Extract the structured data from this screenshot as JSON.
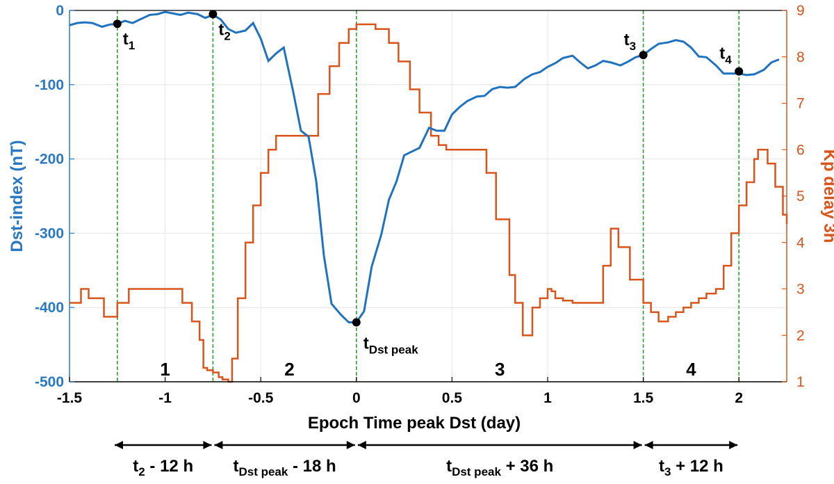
{
  "chart_data": {
    "type": "line",
    "xlabel": "Epoch Time peak Dst (day)",
    "ylabel_left": "Dst-index (nT)",
    "ylabel_right": "Kp delay 3h",
    "xlim": [
      -1.5,
      2.25
    ],
    "ylim_left": [
      -500,
      0
    ],
    "ylim_right": [
      1,
      9
    ],
    "x_ticks": [
      -1.5,
      -1,
      -0.5,
      0,
      0.5,
      1,
      1.5,
      2
    ],
    "x_tick_labels": [
      "-1.5",
      "-1",
      "-0.5",
      "0",
      "0.5",
      "1",
      "1.5",
      "2"
    ],
    "y_left_ticks": [
      0,
      -100,
      -200,
      -300,
      -400,
      -500
    ],
    "y_left_tick_labels": [
      "0",
      "-100",
      "-200",
      "-300",
      "-400",
      "-500"
    ],
    "y_right_ticks": [
      1,
      2,
      3,
      4,
      5,
      6,
      7,
      8,
      9
    ],
    "y_right_tick_labels": [
      "1",
      "2",
      "3",
      "4",
      "5",
      "6",
      "7",
      "8",
      "9"
    ],
    "grid": true,
    "colors": {
      "dst": "#1f72bd",
      "kp": "#d9541a",
      "vline": "#2ca02c"
    },
    "dst": {
      "x": [
        -1.5,
        -1.46,
        -1.42,
        -1.38,
        -1.33,
        -1.29,
        -1.25,
        -1.21,
        -1.17,
        -1.13,
        -1.08,
        -1.04,
        -1.0,
        -0.96,
        -0.92,
        -0.88,
        -0.83,
        -0.79,
        -0.75,
        -0.71,
        -0.67,
        -0.63,
        -0.58,
        -0.54,
        -0.5,
        -0.46,
        -0.42,
        -0.38,
        -0.33,
        -0.29,
        -0.25,
        -0.21,
        -0.17,
        -0.13,
        -0.08,
        -0.04,
        0.0,
        0.04,
        0.08,
        0.13,
        0.17,
        0.21,
        0.25,
        0.29,
        0.33,
        0.38,
        0.42,
        0.46,
        0.5,
        0.54,
        0.58,
        0.63,
        0.67,
        0.71,
        0.75,
        0.79,
        0.83,
        0.88,
        0.92,
        0.96,
        1.0,
        1.04,
        1.08,
        1.13,
        1.17,
        1.21,
        1.25,
        1.29,
        1.33,
        1.38,
        1.42,
        1.46,
        1.5,
        1.54,
        1.58,
        1.63,
        1.67,
        1.71,
        1.75,
        1.79,
        1.83,
        1.88,
        1.92,
        1.96,
        2.0,
        2.04,
        2.08,
        2.13,
        2.17,
        2.21
      ],
      "y": [
        -20,
        -17,
        -16,
        -17,
        -22,
        -19,
        -18,
        -14,
        -17,
        -12,
        -6,
        -5,
        -2,
        -4,
        -6,
        -3,
        -5,
        -10,
        -6,
        -12,
        -25,
        -30,
        -27,
        -17,
        -38,
        -68,
        -58,
        -50,
        -110,
        -162,
        -170,
        -230,
        -330,
        -395,
        -410,
        -420,
        -420,
        -405,
        -345,
        -302,
        -255,
        -230,
        -195,
        -190,
        -185,
        -158,
        -162,
        -162,
        -140,
        -130,
        -122,
        -116,
        -115,
        -106,
        -103,
        -104,
        -103,
        -92,
        -86,
        -83,
        -76,
        -71,
        -64,
        -61,
        -70,
        -78,
        -74,
        -68,
        -70,
        -74,
        -69,
        -63,
        -60,
        -52,
        -45,
        -43,
        -40,
        -42,
        -50,
        -62,
        -63,
        -74,
        -85,
        -85,
        -85,
        -87,
        -86,
        -80,
        -70,
        -66
      ]
    },
    "kp": {
      "x": [
        -1.5,
        -1.44,
        -1.4,
        -1.32,
        -1.25,
        -1.19,
        -1.1,
        -1.0,
        -0.95,
        -0.91,
        -0.86,
        -0.82,
        -0.8,
        -0.78,
        -0.75,
        -0.72,
        -0.7,
        -0.67,
        -0.65,
        -0.62,
        -0.58,
        -0.54,
        -0.5,
        -0.46,
        -0.42,
        -0.38,
        -0.29,
        -0.2,
        -0.14,
        -0.09,
        -0.04,
        0.0,
        0.04,
        0.1,
        0.17,
        0.22,
        0.28,
        0.33,
        0.39,
        0.43,
        0.47,
        0.5,
        0.55,
        0.6,
        0.63,
        0.68,
        0.73,
        0.8,
        0.83,
        0.87,
        0.92,
        0.96,
        1.0,
        1.02,
        1.04,
        1.08,
        1.13,
        1.2,
        1.25,
        1.29,
        1.33,
        1.37,
        1.43,
        1.5,
        1.54,
        1.58,
        1.63,
        1.67,
        1.71,
        1.75,
        1.79,
        1.83,
        1.88,
        1.92,
        1.96,
        2.0,
        2.04,
        2.08,
        2.1,
        2.15,
        2.19,
        2.23,
        2.25
      ],
      "y": [
        2.7,
        3.0,
        2.8,
        2.4,
        2.7,
        3.0,
        3.0,
        3.0,
        3.0,
        2.7,
        2.3,
        1.9,
        1.3,
        1.25,
        1.2,
        1.1,
        1.05,
        1.0,
        1.5,
        2.8,
        4.0,
        4.8,
        5.5,
        6.0,
        6.3,
        6.3,
        6.3,
        7.2,
        7.8,
        8.3,
        8.6,
        8.7,
        8.7,
        8.6,
        8.3,
        7.9,
        7.3,
        6.8,
        6.3,
        6.1,
        6.0,
        6.0,
        6.0,
        6.0,
        6.0,
        5.5,
        4.5,
        3.3,
        2.7,
        2.0,
        2.6,
        2.8,
        3.0,
        2.95,
        2.8,
        2.75,
        2.7,
        2.7,
        2.7,
        3.5,
        4.3,
        3.9,
        3.2,
        2.7,
        2.5,
        2.3,
        2.4,
        2.5,
        2.6,
        2.7,
        2.8,
        2.9,
        3.0,
        3.5,
        4.2,
        4.8,
        5.3,
        5.8,
        6.0,
        5.7,
        5.2,
        4.6,
        4.4
      ]
    },
    "vlines": [
      -1.25,
      -0.75,
      0,
      1.5,
      2
    ],
    "markers": [
      {
        "x": -1.25,
        "y": -18,
        "label": "t",
        "sub": "1"
      },
      {
        "x": -0.75,
        "y": -5,
        "label": "t",
        "sub": "2"
      },
      {
        "x": 0,
        "y": -420,
        "label": "t",
        "sub": "Dst peak"
      },
      {
        "x": 1.5,
        "y": -60,
        "label": "t",
        "sub": "3"
      },
      {
        "x": 2,
        "y": -82,
        "label": "t",
        "sub": "4"
      }
    ],
    "regions": [
      {
        "x": -1.0,
        "label": "1"
      },
      {
        "x": -0.35,
        "label": "2"
      },
      {
        "x": 0.75,
        "label": "3"
      },
      {
        "x": 1.75,
        "label": "4"
      }
    ],
    "spans": [
      {
        "from": -1.5,
        "to": -0.75,
        "label": "t",
        "sub": "2",
        "rest": " - 12 h"
      },
      {
        "from": -0.75,
        "to": 0,
        "label": "t",
        "sub": "Dst peak",
        "rest": " - 18 h"
      },
      {
        "from": 0,
        "to": 1.5,
        "label": "t",
        "sub": "Dst peak",
        "rest": " + 36 h"
      },
      {
        "from": 1.5,
        "to": 2,
        "label": "t",
        "sub": "3",
        "rest": " + 12 h"
      }
    ]
  }
}
